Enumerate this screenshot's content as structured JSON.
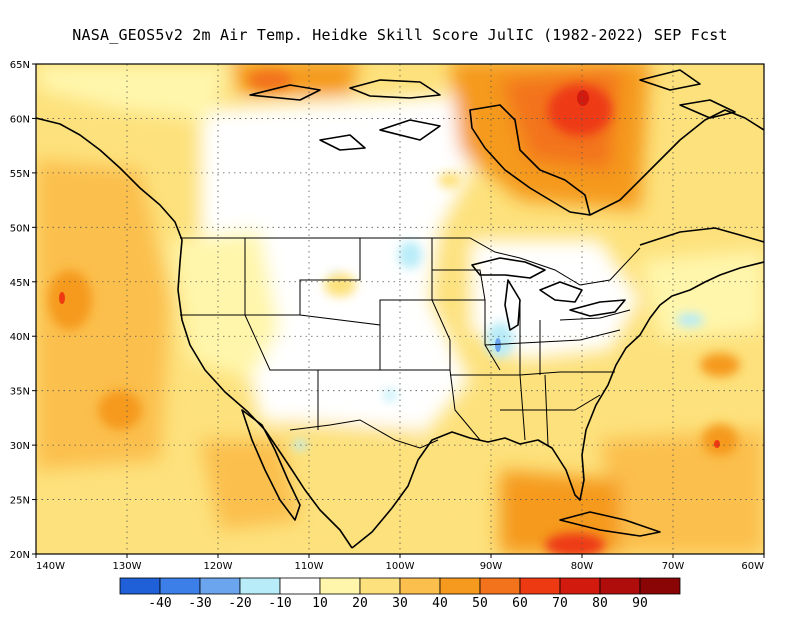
{
  "title": "NASA_GEOS5v2  2m Air Temp. Heidke Skill Score JulIC (1982-2022) SEP Fcst",
  "map": {
    "lat_range": [
      20,
      65
    ],
    "lon_range": [
      -140,
      -60
    ],
    "lat_labels": [
      "65N",
      "60N",
      "55N",
      "50N",
      "45N",
      "40N",
      "35N",
      "30N",
      "25N",
      "20N"
    ],
    "lon_labels": [
      "140W",
      "130W",
      "120W",
      "110W",
      "100W",
      "90W",
      "80W",
      "70W",
      "60W"
    ],
    "grid": "dotted"
  },
  "colorbar": {
    "levels": [
      "-40",
      "-30",
      "-20",
      "-10",
      "10",
      "20",
      "30",
      "40",
      "50",
      "60",
      "70",
      "80",
      "90"
    ],
    "colors": [
      "#1f5fd8",
      "#3c7fe8",
      "#6aa5ee",
      "#b8ecf8",
      "#ffffff",
      "#fff6ac",
      "#fde17c",
      "#fbbf4e",
      "#f59a1e",
      "#f3731c",
      "#ee3a12",
      "#d21a0e",
      "#ae0d0c",
      "#8a0606"
    ]
  }
}
